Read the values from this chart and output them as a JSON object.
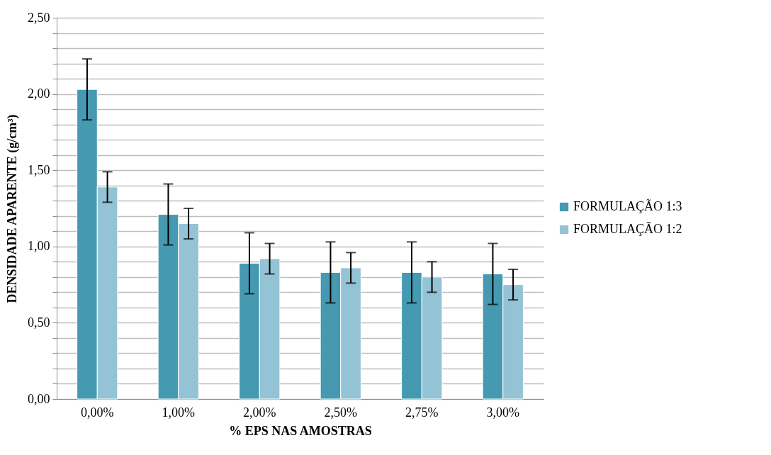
{
  "chart_data": {
    "type": "bar",
    "xlabel": "% EPS NAS AMOSTRAS",
    "ylabel": "DENSIDADE APARENTE (g/cm³)",
    "categories": [
      "0,00%",
      "1,00%",
      "2,00%",
      "2,50%",
      "2,75%",
      "3,00%"
    ],
    "series": [
      {
        "name": "FORMULAÇÃO 1:3",
        "color": "#4599b0",
        "values": [
          2.03,
          1.21,
          0.89,
          0.83,
          0.83,
          0.82
        ],
        "errors": [
          0.2,
          0.2,
          0.2,
          0.2,
          0.2,
          0.2
        ]
      },
      {
        "name": "FORMULAÇÃO 1:2",
        "color": "#93c3d4",
        "values": [
          1.39,
          1.15,
          0.92,
          0.86,
          0.8,
          0.75
        ],
        "errors": [
          0.1,
          0.1,
          0.1,
          0.1,
          0.1,
          0.1
        ]
      }
    ],
    "ylim": [
      0,
      2.5
    ],
    "yticks": [
      {
        "value": 0,
        "label": "0,00"
      },
      {
        "value": 0.1,
        "label": null
      },
      {
        "value": 0.2,
        "label": null
      },
      {
        "value": 0.3,
        "label": null
      },
      {
        "value": 0.4,
        "label": null
      },
      {
        "value": 0.5,
        "label": "0,50"
      },
      {
        "value": 0.6,
        "label": null
      },
      {
        "value": 0.7,
        "label": null
      },
      {
        "value": 0.8,
        "label": null
      },
      {
        "value": 0.9,
        "label": null
      },
      {
        "value": 1,
        "label": "1,00"
      },
      {
        "value": 1.1,
        "label": null
      },
      {
        "value": 1.2,
        "label": null
      },
      {
        "value": 1.3,
        "label": null
      },
      {
        "value": 1.4,
        "label": null
      },
      {
        "value": 1.5,
        "label": "1,50"
      },
      {
        "value": 1.6,
        "label": null
      },
      {
        "value": 1.7,
        "label": null
      },
      {
        "value": 1.8,
        "label": null
      },
      {
        "value": 1.9,
        "label": null
      },
      {
        "value": 2,
        "label": "2,00"
      },
      {
        "value": 2.1,
        "label": null
      },
      {
        "value": 2.2,
        "label": null
      },
      {
        "value": 2.3,
        "label": null
      },
      {
        "value": 2.4,
        "label": null
      },
      {
        "value": 2.5,
        "label": "2,50"
      }
    ],
    "grid": "y",
    "legend": "right"
  }
}
